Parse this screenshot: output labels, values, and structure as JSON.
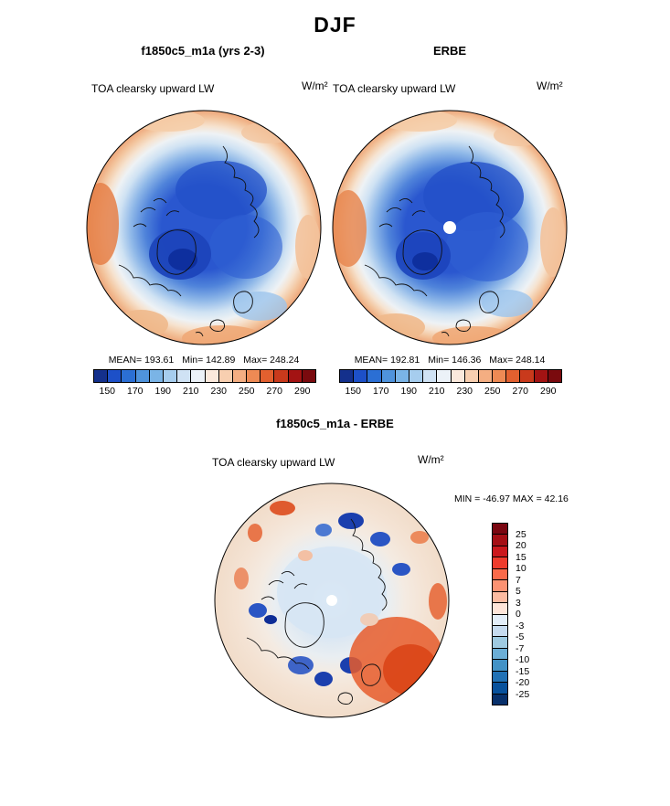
{
  "page": {
    "title": "DJF"
  },
  "left_panel": {
    "title": "f1850c5_m1a (yrs 2-3)",
    "field": "TOA clearsky upward LW",
    "units": "W/m²",
    "stats": {
      "mean": "MEAN= 193.61",
      "min": "Min= 142.89",
      "max": "Max= 248.24"
    }
  },
  "right_panel": {
    "title": "ERBE",
    "field": "TOA clearsky upward LW",
    "units": "W/m²",
    "stats": {
      "mean": "MEAN= 192.81",
      "min": "Min= 146.36",
      "max": "Max= 248.14"
    }
  },
  "main_colorbar": {
    "ticks": [
      "150",
      "170",
      "190",
      "210",
      "230",
      "250",
      "270",
      "290"
    ],
    "colors": [
      "#14308c",
      "#1d50c8",
      "#2b6fd4",
      "#4f93dc",
      "#7ab4e6",
      "#a6cdee",
      "#cfe2f4",
      "#ecf2f8",
      "#fbe9dc",
      "#f8cfb0",
      "#f4ae82",
      "#ee8a54",
      "#e2602f",
      "#c93a1c",
      "#a31313",
      "#7a0a0e"
    ]
  },
  "diff_panel": {
    "title": "f1850c5_m1a - ERBE",
    "field": "TOA clearsky upward LW",
    "units": "W/m²",
    "minmax": "MIN = -46.97 MAX =  42.16",
    "colorbar": {
      "labels": [
        "25",
        "20",
        "15",
        "10",
        "7",
        "5",
        "3",
        "0",
        "-3",
        "-5",
        "-7",
        "-10",
        "-15",
        "-20",
        "-25"
      ],
      "colors": [
        "#7a0711",
        "#a50f15",
        "#cb181d",
        "#ef3b2c",
        "#fb6a4a",
        "#fc9272",
        "#fcbba1",
        "#fee5d9",
        "#e3eef9",
        "#c6dbef",
        "#9ecae1",
        "#6baed6",
        "#4292c6",
        "#2171b5",
        "#08519c",
        "#08306b"
      ]
    }
  },
  "chart_data": [
    {
      "type": "heatmap",
      "projection": "north-polar-stereographic",
      "season": "DJF",
      "title": "f1850c5_m1a (yrs 2-3)",
      "field": "TOA clearsky upward LW",
      "units": "W/m²",
      "stats": {
        "mean": 193.61,
        "min": 142.89,
        "max": 248.24
      },
      "colorbar": {
        "ticks": [
          150,
          170,
          190,
          210,
          230,
          250,
          270,
          290
        ],
        "range": [
          140,
          300
        ],
        "interval": 10,
        "orientation": "horizontal"
      }
    },
    {
      "type": "heatmap",
      "projection": "north-polar-stereographic",
      "season": "DJF",
      "title": "ERBE",
      "field": "TOA clearsky upward LW",
      "units": "W/m²",
      "stats": {
        "mean": 192.81,
        "min": 146.36,
        "max": 248.14
      },
      "colorbar": {
        "ticks": [
          150,
          170,
          190,
          210,
          230,
          250,
          270,
          290
        ],
        "range": [
          140,
          300
        ],
        "interval": 10,
        "orientation": "horizontal"
      }
    },
    {
      "type": "heatmap",
      "projection": "north-polar-stereographic",
      "season": "DJF",
      "title": "f1850c5_m1a - ERBE",
      "field": "TOA clearsky upward LW",
      "units": "W/m²",
      "stats": {
        "min": -46.97,
        "max": 42.16
      },
      "colorbar": {
        "ticks": [
          25,
          20,
          15,
          10,
          7,
          5,
          3,
          0,
          -3,
          -5,
          -7,
          -10,
          -15,
          -20,
          -25
        ],
        "orientation": "vertical"
      }
    }
  ]
}
